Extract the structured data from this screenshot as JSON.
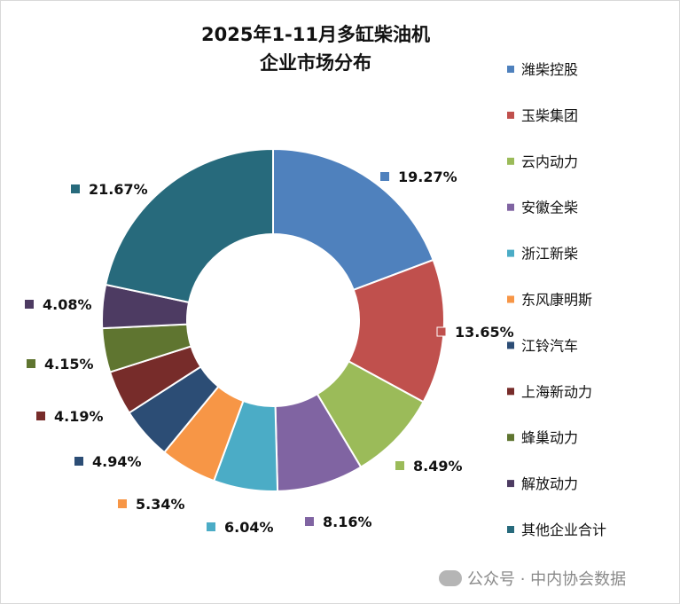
{
  "chart_data": {
    "type": "pie",
    "variant": "donut",
    "title": [
      "2025年1-11月多缸柴油机",
      "企业市场分布"
    ],
    "categories": [
      "潍柴控股",
      "玉柴集团",
      "云内动力",
      "安徽全柴",
      "浙江新柴",
      "东风康明斯",
      "江铃汽车",
      "上海新动力",
      "蜂巢动力",
      "解放动力",
      "其他企业合计"
    ],
    "values": [
      19.27,
      13.65,
      8.49,
      8.16,
      6.04,
      5.34,
      4.94,
      4.19,
      4.15,
      4.08,
      21.67
    ],
    "data_labels": [
      "19.27%",
      "13.65%",
      "8.49%",
      "8.16%",
      "6.04%",
      "5.34%",
      "4.94%",
      "4.19%",
      "4.15%",
      "4.08%",
      "21.67%"
    ],
    "unit": "%",
    "colors": [
      "#4F81BD",
      "#C0504D",
      "#9BBB59",
      "#8064A2",
      "#4BACC6",
      "#F79646",
      "#2C4D75",
      "#772C2A",
      "#5F7530",
      "#4D3B62",
      "#276A7C"
    ],
    "legend_position": "right"
  },
  "watermark": "公众号 · 中内协会数据"
}
